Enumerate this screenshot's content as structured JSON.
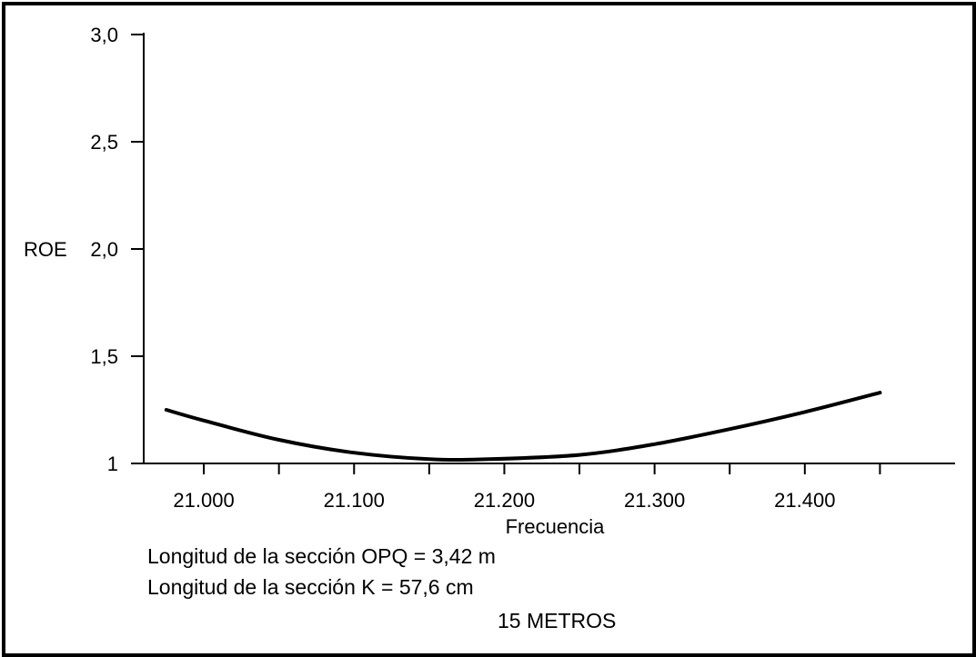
{
  "chart_data": {
    "type": "line",
    "ylabel": "ROE",
    "xlabel": "Frecuencia",
    "ylim": [
      1,
      3
    ],
    "xlim": [
      20960,
      21500
    ],
    "y_ticks": [
      1,
      1.5,
      2.0,
      2.5,
      3.0
    ],
    "y_tick_labels": [
      "1",
      "1,5",
      "2,0",
      "2,5",
      "3,0"
    ],
    "x_ticks": [
      21000,
      21100,
      21200,
      21300,
      21400
    ],
    "x_tick_labels": [
      "21.000",
      "21.100",
      "21.200",
      "21.300",
      "21.400"
    ],
    "grid": false,
    "series": [
      {
        "x": [
          20975,
          21000,
          21050,
          21100,
          21150,
          21190,
          21250,
          21300,
          21350,
          21400,
          21450
        ],
        "y": [
          1.25,
          1.2,
          1.11,
          1.05,
          1.02,
          1.02,
          1.04,
          1.09,
          1.16,
          1.24,
          1.33
        ]
      }
    ]
  },
  "notes": {
    "line1": "Longitud de la sección OPQ = 3,42 m",
    "line2": "Longitud de la sección K = 57,6 cm",
    "line3": "15 METROS"
  }
}
